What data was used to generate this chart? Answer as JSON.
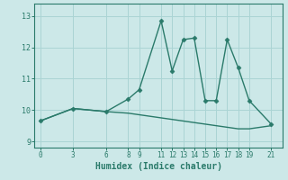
{
  "xlabel": "Humidex (Indice chaleur)",
  "background_color": "#cce8e8",
  "line_color": "#2a7a6a",
  "series1_x": [
    0,
    3,
    6,
    8,
    9,
    11,
    12,
    13,
    14,
    15,
    16,
    17,
    18,
    19,
    21
  ],
  "series1_y": [
    9.65,
    10.05,
    9.95,
    10.35,
    10.65,
    12.85,
    11.25,
    12.25,
    12.3,
    10.3,
    10.3,
    12.25,
    11.35,
    10.3,
    9.55
  ],
  "series2_x": [
    0,
    3,
    6,
    8,
    9,
    11,
    12,
    13,
    14,
    15,
    16,
    17,
    18,
    19,
    21
  ],
  "series2_y": [
    9.65,
    10.05,
    9.95,
    9.9,
    9.85,
    9.75,
    9.7,
    9.65,
    9.6,
    9.55,
    9.5,
    9.45,
    9.4,
    9.4,
    9.5
  ],
  "ylim": [
    8.8,
    13.4
  ],
  "yticks": [
    9,
    10,
    11,
    12,
    13
  ],
  "xticks": [
    0,
    3,
    6,
    8,
    9,
    11,
    12,
    13,
    14,
    15,
    16,
    17,
    18,
    19,
    21
  ],
  "xlim": [
    -0.5,
    22.0
  ],
  "grid_color": "#aad4d4",
  "marker": "D",
  "markersize": 2.5,
  "linewidth": 1.0
}
